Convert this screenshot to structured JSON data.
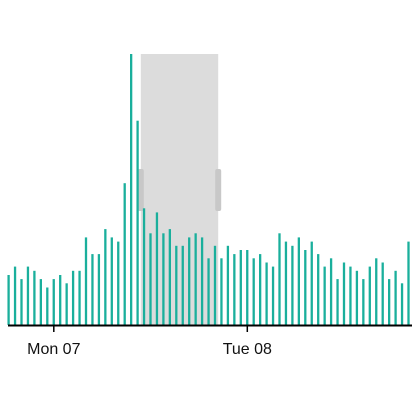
{
  "chart_data": {
    "type": "bar",
    "title": "",
    "xlabel": "",
    "ylabel": "",
    "ylim": [
      0,
      65
    ],
    "grid": false,
    "legend": "none",
    "bar_color": "#1aaf9c",
    "x_ticks": [
      {
        "label": "Mon 07",
        "at_index": 7.0
      },
      {
        "label": "Tue 08",
        "at_index": 37.0
      }
    ],
    "values": [
      12,
      14,
      11,
      14,
      13,
      11,
      9,
      11,
      12,
      10,
      13,
      13,
      21,
      17,
      17,
      23,
      21,
      20,
      34,
      65,
      49,
      28,
      22,
      27,
      22,
      23,
      19,
      19,
      21,
      22,
      21,
      16,
      19,
      16,
      19,
      17,
      18,
      18,
      16,
      17,
      15,
      14,
      22,
      20,
      19,
      21,
      18,
      20,
      17,
      14,
      16,
      11,
      15,
      14,
      13,
      11,
      14,
      16,
      15,
      11,
      13,
      10,
      20
    ],
    "brush": {
      "start_index": 20.5,
      "end_index": 32.5,
      "fill": "#dcdcdc",
      "handle_color": "#c8c8c8"
    }
  }
}
